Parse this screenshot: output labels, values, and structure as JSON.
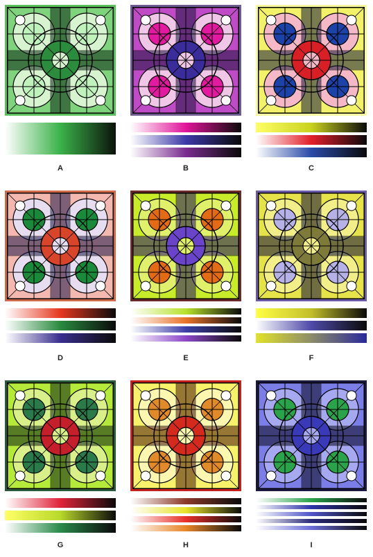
{
  "panels": [
    {
      "label": "A",
      "colors": {
        "dark": "#0b2a14",
        "mid": "#2a8c3c",
        "light": "#7fd37d",
        "pale": "#d7f3d0",
        "accent": "#bff2bd",
        "bg": "#5bc05b"
      },
      "gradients": [
        [
          "#ffffff",
          "#3bb24a",
          "#0b130b"
        ]
      ]
    },
    {
      "label": "B",
      "colors": {
        "dark": "#1c1340",
        "mid": "#3b2c9b",
        "light": "#c04bc7",
        "pale": "#f1c7e8",
        "accent": "#e21aa0",
        "bg": "#6d5a8e"
      },
      "gradients": [
        [
          "#ffffff",
          "#e0169a",
          "#0a0a0a"
        ],
        [
          "#ffffff",
          "#3d3aa8",
          "#0a0a0a"
        ],
        [
          "#ffffff",
          "#7a2d8f",
          "#0a0a0a"
        ]
      ]
    },
    {
      "label": "C",
      "colors": {
        "dark": "#151a3a",
        "mid": "#d81f26",
        "light": "#f3f16a",
        "pale": "#f4b8c6",
        "accent": "#1d42a8",
        "bg": "#f7f7a0"
      },
      "gradients": [
        [
          "#ffff66",
          "#c9d21f",
          "#0a0a0a"
        ],
        [
          "#ffffff",
          "#e11f2a",
          "#0a0a0a"
        ],
        [
          "#ffffff",
          "#2a4aa8",
          "#0a0a0a"
        ]
      ]
    },
    {
      "label": "D",
      "colors": {
        "dark": "#1e1a4a",
        "mid": "#d9452a",
        "light": "#f3b8b0",
        "pale": "#e6ddf0",
        "accent": "#1a8a3a",
        "bg": "#d06a48"
      },
      "gradients": [
        [
          "#ffffff",
          "#e6381f",
          "#0a0a0a"
        ],
        [
          "#ffffff",
          "#2a8a3f",
          "#0a0a0a"
        ],
        [
          "#ffffff",
          "#3a2f8f",
          "#0a0a0a"
        ]
      ]
    },
    {
      "label": "E",
      "colors": {
        "dark": "#26106e",
        "mid": "#6a44c8",
        "light": "#c8ec2a",
        "pale": "#e1f06a",
        "accent": "#e46b16",
        "bg": "#6b2a2a"
      },
      "gradients": [
        [
          "#ffffff",
          "#b8e22e",
          "#0a0a0a"
        ],
        [
          "#ffffff",
          "#e8742a",
          "#0a0a0a"
        ],
        [
          "#ffffff",
          "#3e3fa8",
          "#0a0a0a"
        ],
        [
          "#ffffff",
          "#8c48c8",
          "#0a0a0a"
        ]
      ]
    },
    {
      "label": "F",
      "colors": {
        "dark": "#0f0f3a",
        "mid": "#7e7a3a",
        "light": "#e6e24a",
        "pale": "#f2ee8a",
        "accent": "#b6b1e6",
        "bg": "#6b5aa8"
      },
      "gradients": [
        [
          "#ffff44",
          "#c2be2a",
          "#0a0a0a"
        ],
        [
          "#ffffff",
          "#4e4aa8",
          "#0a0a0a"
        ],
        [
          "#e2e22a",
          "#8c8c6a",
          "#2a2a9a"
        ]
      ]
    },
    {
      "label": "G",
      "colors": {
        "dark": "#0d2416",
        "mid": "#c41f2a",
        "light": "#b6ea3a",
        "pale": "#d9f08a",
        "accent": "#2a7a4a",
        "bg": "#2a5a3a"
      },
      "gradients": [
        [
          "#ffffff",
          "#e0243a",
          "#0a0a0a"
        ],
        [
          "#ffff66",
          "#b8d82a",
          "#0a0a0a"
        ],
        [
          "#ffffff",
          "#2a8a4a",
          "#0a0a0a"
        ]
      ]
    },
    {
      "label": "H",
      "colors": {
        "dark": "#4a1408",
        "mid": "#d42a1e",
        "light": "#f7f26a",
        "pale": "#fbf6b0",
        "accent": "#e08a2a",
        "bg": "#c42020"
      },
      "gradients": [
        [
          "#ffffff",
          "#8a3a2a",
          "#0a0a0a"
        ],
        [
          "#ffffff",
          "#e8e42a",
          "#0a0a0a"
        ],
        [
          "#ffffff",
          "#e8302a",
          "#0a0a0a"
        ],
        [
          "#ffffff",
          "#e8862a",
          "#0a0a0a"
        ]
      ]
    },
    {
      "label": "I",
      "colors": {
        "dark": "#0a0a1e",
        "mid": "#3a3ab8",
        "light": "#7c7ee8",
        "pale": "#a6a8f0",
        "accent": "#2aa34a",
        "bg": "#1a1a40"
      },
      "gradients": [
        [
          "#ffffff",
          "#2aa34a",
          "#0a0a0a"
        ],
        [
          "#ffffff",
          "#2f33a8",
          "#0a0a0a"
        ],
        [
          "#ffffff",
          "#4e54c8",
          "#0a0a0a"
        ],
        [
          "#ffffff",
          "#2a2a7a",
          "#0a0a0a"
        ],
        [
          "#ffffff",
          "#6c6ed8",
          "#0a0a0a"
        ]
      ]
    }
  ]
}
